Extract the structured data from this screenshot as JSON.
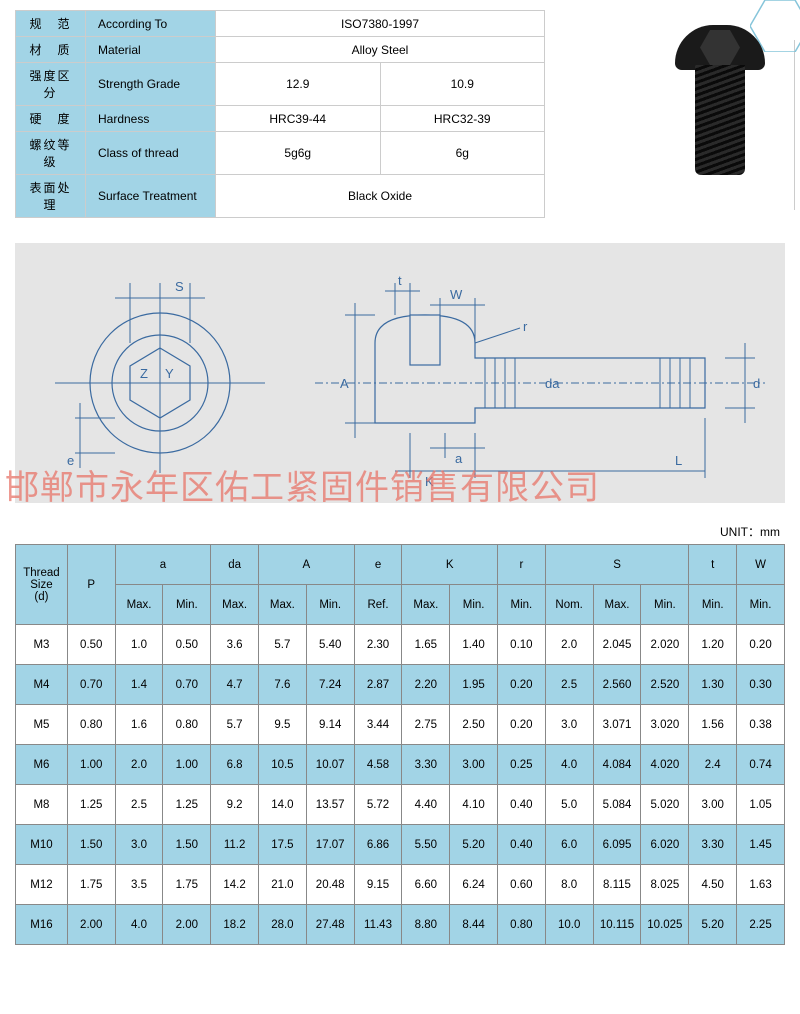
{
  "spec": {
    "rows": [
      {
        "cn": "规　范",
        "en": "According To",
        "v": [
          "ISO7380-1997"
        ]
      },
      {
        "cn": "材　质",
        "en": "Material",
        "v": [
          "Alloy Steel"
        ]
      },
      {
        "cn": "强度区分",
        "en": "Strength Grade",
        "v": [
          "12.9",
          "10.9"
        ]
      },
      {
        "cn": "硬　度",
        "en": "Hardness",
        "v": [
          "HRC39-44",
          "HRC32-39"
        ]
      },
      {
        "cn": "螺纹等级",
        "en": "Class of thread",
        "v": [
          "5g6g",
          "6g"
        ]
      },
      {
        "cn": "表面处理",
        "en": "Surface Treatment",
        "v": [
          "Black Oxide"
        ]
      }
    ]
  },
  "diagram": {
    "labels": {
      "S": "S",
      "Z": "Z",
      "Y": "Y",
      "e": "e",
      "t": "t",
      "W": "W",
      "r": "r",
      "A": "A",
      "da": "da",
      "d": "d",
      "a": "a",
      "K": "K",
      "L": "L"
    }
  },
  "watermark": "邯郸市永年区佑工紧固件销售有限公司",
  "unit_label": "UNIT：mm",
  "data": {
    "head1": [
      "Thread\nSize\n(d)",
      "P",
      "a",
      "da",
      "A",
      "e",
      "K",
      "r",
      "S",
      "t",
      "W"
    ],
    "spans": [
      1,
      1,
      2,
      1,
      2,
      1,
      2,
      1,
      3,
      1,
      1
    ],
    "head2": [
      "Max.",
      "Min.",
      "Max.",
      "Max.",
      "Min.",
      "Ref.",
      "Max.",
      "Min.",
      "Min.",
      "Nom.",
      "Max.",
      "Min.",
      "Min.",
      "Min."
    ],
    "rows": [
      [
        "M3",
        "0.50",
        "1.0",
        "0.50",
        "3.6",
        "5.7",
        "5.40",
        "2.30",
        "1.65",
        "1.40",
        "0.10",
        "2.0",
        "2.045",
        "2.020",
        "1.20",
        "0.20"
      ],
      [
        "M4",
        "0.70",
        "1.4",
        "0.70",
        "4.7",
        "7.6",
        "7.24",
        "2.87",
        "2.20",
        "1.95",
        "0.20",
        "2.5",
        "2.560",
        "2.520",
        "1.30",
        "0.30"
      ],
      [
        "M5",
        "0.80",
        "1.6",
        "0.80",
        "5.7",
        "9.5",
        "9.14",
        "3.44",
        "2.75",
        "2.50",
        "0.20",
        "3.0",
        "3.071",
        "3.020",
        "1.56",
        "0.38"
      ],
      [
        "M6",
        "1.00",
        "2.0",
        "1.00",
        "6.8",
        "10.5",
        "10.07",
        "4.58",
        "3.30",
        "3.00",
        "0.25",
        "4.0",
        "4.084",
        "4.020",
        "2.4",
        "0.74"
      ],
      [
        "M8",
        "1.25",
        "2.5",
        "1.25",
        "9.2",
        "14.0",
        "13.57",
        "5.72",
        "4.40",
        "4.10",
        "0.40",
        "5.0",
        "5.084",
        "5.020",
        "3.00",
        "1.05"
      ],
      [
        "M10",
        "1.50",
        "3.0",
        "1.50",
        "11.2",
        "17.5",
        "17.07",
        "6.86",
        "5.50",
        "5.20",
        "0.40",
        "6.0",
        "6.095",
        "6.020",
        "3.30",
        "1.45"
      ],
      [
        "M12",
        "1.75",
        "3.5",
        "1.75",
        "14.2",
        "21.0",
        "20.48",
        "9.15",
        "6.60",
        "6.24",
        "0.60",
        "8.0",
        "8.115",
        "8.025",
        "4.50",
        "1.63"
      ],
      [
        "M16",
        "2.00",
        "4.0",
        "2.00",
        "18.2",
        "28.0",
        "27.48",
        "11.43",
        "8.80",
        "8.44",
        "0.80",
        "10.0",
        "10.115",
        "10.025",
        "5.20",
        "2.25"
      ]
    ]
  },
  "colors": {
    "header": "#a2d4e6",
    "border": "#888",
    "dim": "#3a6aa0",
    "wm": "#e8756a"
  }
}
